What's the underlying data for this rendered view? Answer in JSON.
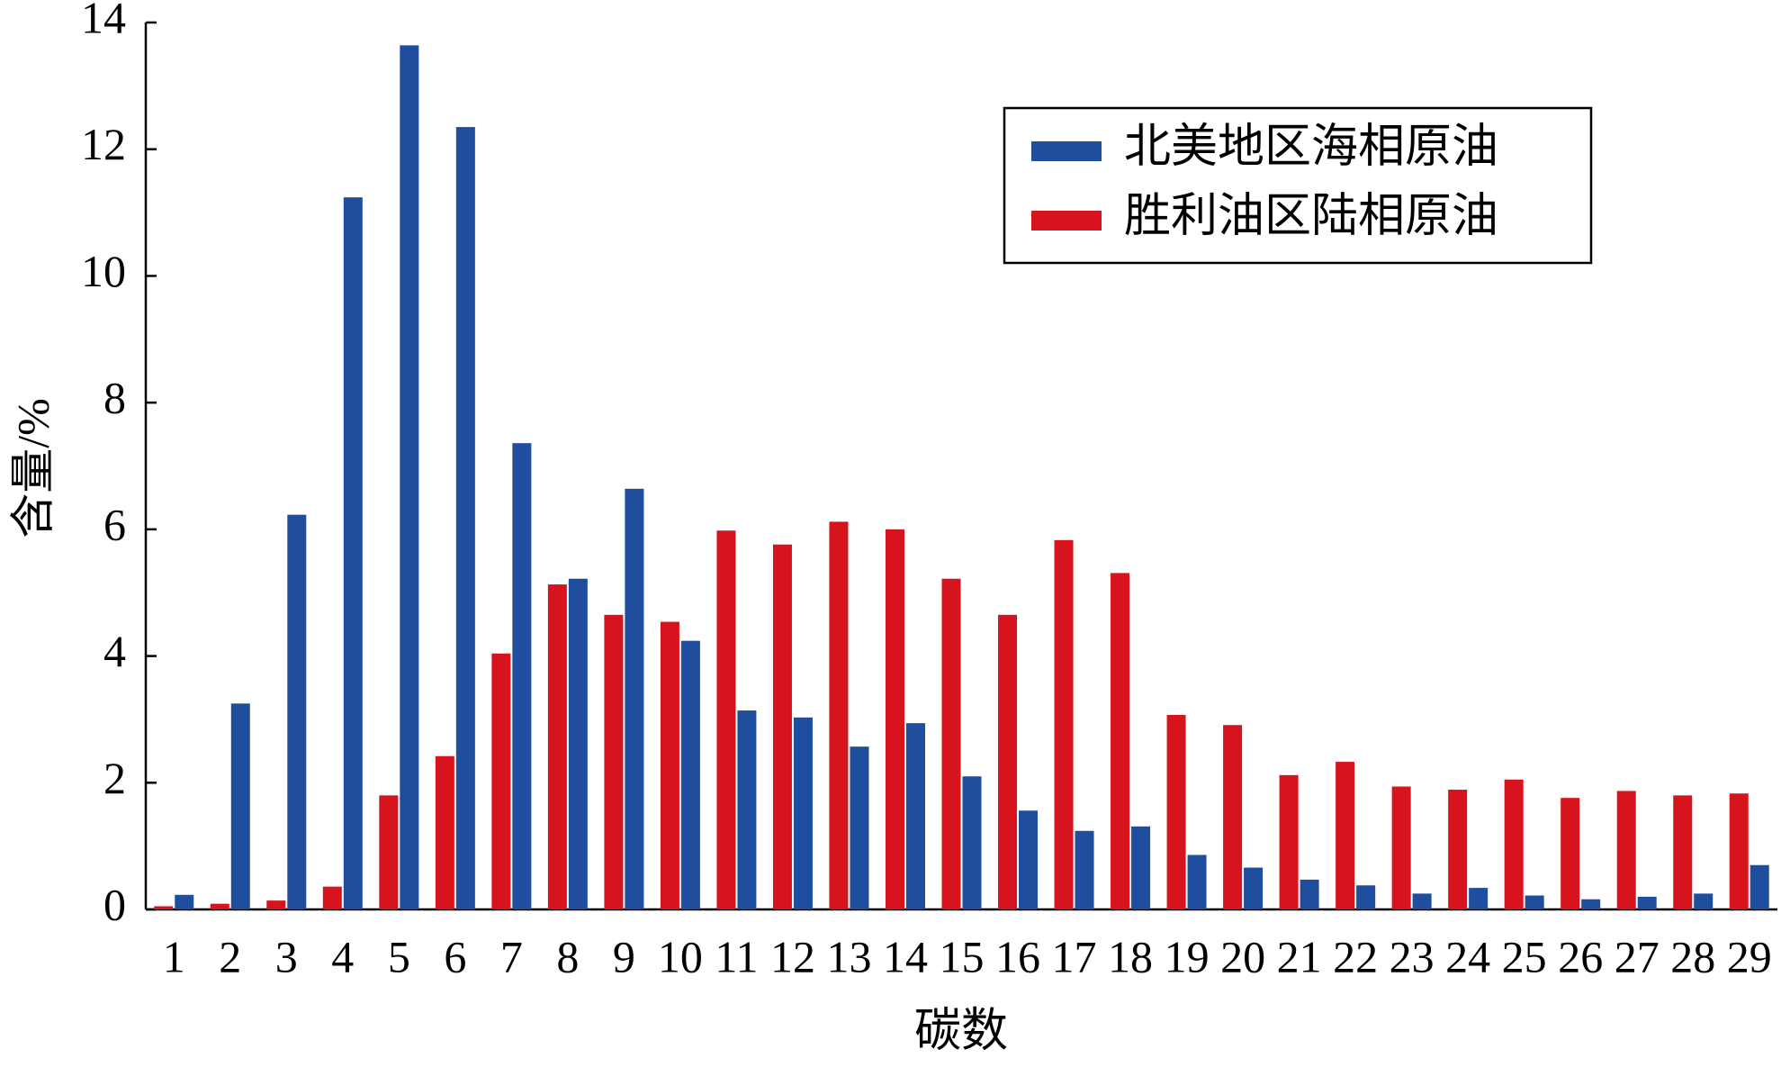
{
  "chart_data": {
    "type": "bar",
    "x_label": "碳数",
    "y_label": "含量/%",
    "categories": [
      "1",
      "2",
      "3",
      "4",
      "5",
      "6",
      "7",
      "8",
      "9",
      "10",
      "11",
      "12",
      "13",
      "14",
      "15",
      "16",
      "17",
      "18",
      "19",
      "20",
      "21",
      "22",
      "23",
      "24",
      "25",
      "26",
      "27",
      "28",
      "29"
    ],
    "series": [
      {
        "name": "北美地区海相原油",
        "color": "#1f4e9f",
        "values": [
          0.23,
          3.25,
          6.23,
          11.24,
          13.64,
          12.35,
          7.36,
          5.22,
          6.64,
          4.24,
          3.14,
          3.03,
          2.57,
          2.94,
          2.1,
          1.56,
          1.24,
          1.31,
          0.86,
          0.66,
          0.47,
          0.38,
          0.25,
          0.34,
          0.22,
          0.16,
          0.2,
          0.25,
          0.7
        ]
      },
      {
        "name": "胜利油区陆相原油",
        "color": "#d7141e",
        "values": [
          0.05,
          0.09,
          0.14,
          0.36,
          1.8,
          2.42,
          4.04,
          5.13,
          4.65,
          4.54,
          5.98,
          5.76,
          6.12,
          6.0,
          5.22,
          4.65,
          5.83,
          5.31,
          3.07,
          2.91,
          2.12,
          2.33,
          1.94,
          1.89,
          2.05,
          1.76,
          1.87,
          1.8,
          1.83
        ]
      }
    ],
    "ylim": [
      0,
      14
    ],
    "yticks": [
      0,
      2,
      4,
      6,
      8,
      10,
      12,
      14
    ],
    "grid": false,
    "legend": "upper right"
  }
}
